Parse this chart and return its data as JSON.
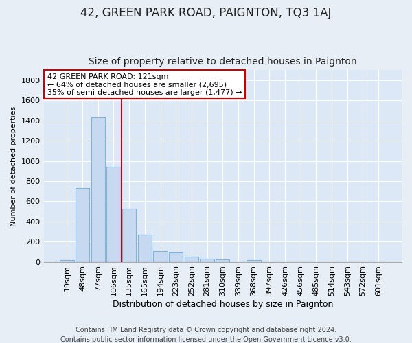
{
  "title": "42, GREEN PARK ROAD, PAIGNTON, TQ3 1AJ",
  "subtitle": "Size of property relative to detached houses in Paignton",
  "xlabel": "Distribution of detached houses by size in Paignton",
  "ylabel": "Number of detached properties",
  "categories": [
    "19sqm",
    "48sqm",
    "77sqm",
    "106sqm",
    "135sqm",
    "165sqm",
    "194sqm",
    "223sqm",
    "252sqm",
    "281sqm",
    "310sqm",
    "339sqm",
    "368sqm",
    "397sqm",
    "426sqm",
    "456sqm",
    "485sqm",
    "514sqm",
    "543sqm",
    "572sqm",
    "601sqm"
  ],
  "values": [
    20,
    730,
    1430,
    940,
    530,
    270,
    105,
    95,
    50,
    30,
    25,
    0,
    15,
    0,
    0,
    0,
    0,
    0,
    0,
    0,
    0
  ],
  "bar_color": "#c6d9f0",
  "bar_edge_color": "#7fb3d9",
  "vline_color": "#cc0000",
  "vline_pos": 3.5,
  "annotation_text": "42 GREEN PARK ROAD: 121sqm\n← 64% of detached houses are smaller (2,695)\n35% of semi-detached houses are larger (1,477) →",
  "annotation_box_color": "#ffffff",
  "annotation_box_edge_color": "#cc0000",
  "ylim": [
    0,
    1900
  ],
  "yticks": [
    0,
    200,
    400,
    600,
    800,
    1000,
    1200,
    1400,
    1600,
    1800
  ],
  "bg_color": "#e8eef5",
  "plot_bg_color": "#dce8f5",
  "grid_color": "#ffffff",
  "footer": "Contains HM Land Registry data © Crown copyright and database right 2024.\nContains public sector information licensed under the Open Government Licence v3.0.",
  "title_fontsize": 12,
  "subtitle_fontsize": 10,
  "xlabel_fontsize": 9,
  "ylabel_fontsize": 8,
  "footer_fontsize": 7,
  "tick_fontsize": 8
}
